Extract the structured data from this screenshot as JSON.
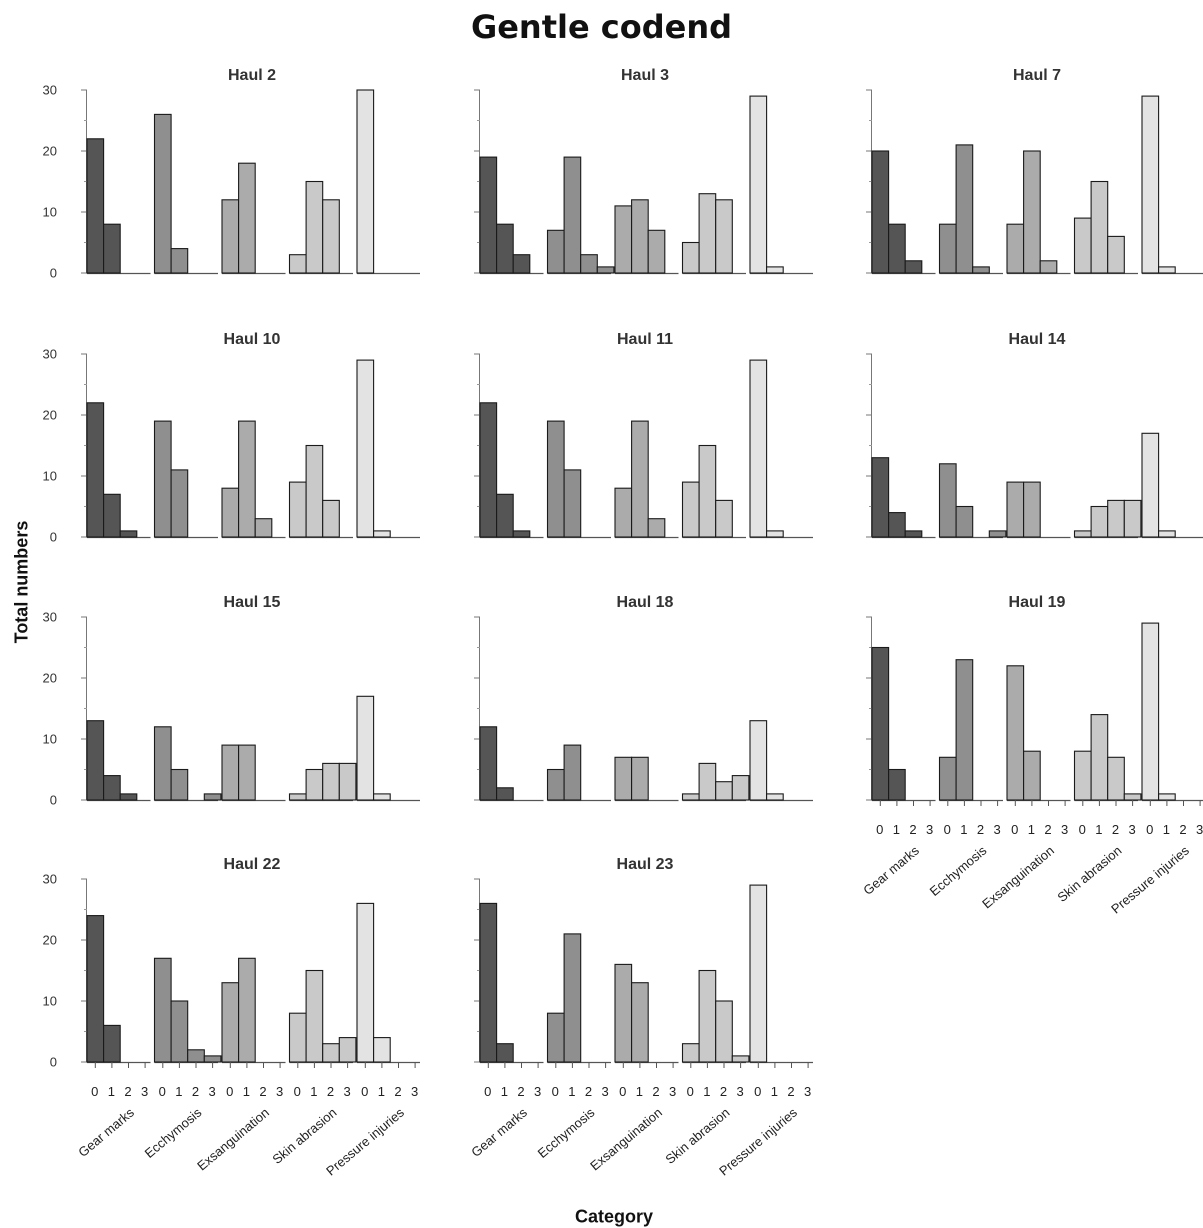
{
  "title": "Gentle codend",
  "ylabel": "Total numbers",
  "xlabel": "Category",
  "chart_data": {
    "type": "bar",
    "title": "Gentle codend",
    "xlabel": "Category",
    "ylabel": "Total numbers",
    "ylim": [
      0,
      30
    ],
    "yticks": [
      "0",
      "10",
      "20",
      "30"
    ],
    "groups": [
      "Gear marks",
      "Ecchymosis",
      "Exsanguination",
      "Skin abrasion",
      "Pressure injuries"
    ],
    "categories": [
      "0",
      "1",
      "2",
      "3"
    ],
    "group_colors": [
      "#555555",
      "#8f8f8f",
      "#ababab",
      "#c9c9c9",
      "#e3e3e3"
    ],
    "panels": [
      {
        "name": "Haul 2",
        "values": [
          [
            22,
            8,
            0,
            0
          ],
          [
            26,
            4,
            0,
            0
          ],
          [
            12,
            18,
            0,
            0
          ],
          [
            3,
            15,
            12,
            0
          ],
          [
            30,
            0,
            0,
            0
          ]
        ]
      },
      {
        "name": "Haul 3",
        "values": [
          [
            19,
            8,
            3,
            0
          ],
          [
            7,
            19,
            3,
            1
          ],
          [
            11,
            12,
            7,
            0
          ],
          [
            5,
            13,
            12,
            0
          ],
          [
            29,
            1,
            0,
            0
          ]
        ]
      },
      {
        "name": "Haul 7",
        "values": [
          [
            20,
            8,
            2,
            0
          ],
          [
            8,
            21,
            1,
            0
          ],
          [
            8,
            20,
            2,
            0
          ],
          [
            9,
            15,
            6,
            0
          ],
          [
            29,
            1,
            0,
            0
          ]
        ]
      },
      {
        "name": "Haul 10",
        "values": [
          [
            22,
            7,
            1,
            0
          ],
          [
            19,
            11,
            0,
            0
          ],
          [
            8,
            19,
            3,
            0
          ],
          [
            9,
            15,
            6,
            0
          ],
          [
            29,
            1,
            0,
            0
          ]
        ]
      },
      {
        "name": "Haul 11",
        "values": [
          [
            22,
            7,
            1,
            0
          ],
          [
            19,
            11,
            0,
            0
          ],
          [
            8,
            19,
            3,
            0
          ],
          [
            9,
            15,
            6,
            0
          ],
          [
            29,
            1,
            0,
            0
          ]
        ]
      },
      {
        "name": "Haul 14",
        "values": [
          [
            13,
            4,
            1,
            0
          ],
          [
            12,
            5,
            0,
            1
          ],
          [
            9,
            9,
            0,
            0
          ],
          [
            1,
            5,
            6,
            6
          ],
          [
            17,
            1,
            0,
            0
          ]
        ]
      },
      {
        "name": "Haul 15",
        "values": [
          [
            13,
            4,
            1,
            0
          ],
          [
            12,
            5,
            0,
            1
          ],
          [
            9,
            9,
            0,
            0
          ],
          [
            1,
            5,
            6,
            6
          ],
          [
            17,
            1,
            0,
            0
          ]
        ]
      },
      {
        "name": "Haul 18",
        "values": [
          [
            12,
            2,
            0,
            0
          ],
          [
            5,
            9,
            0,
            0
          ],
          [
            7,
            7,
            0,
            0
          ],
          [
            1,
            6,
            3,
            4
          ],
          [
            13,
            1,
            0,
            0
          ]
        ]
      },
      {
        "name": "Haul 19",
        "values": [
          [
            25,
            5,
            0,
            0
          ],
          [
            7,
            23,
            0,
            0
          ],
          [
            22,
            8,
            0,
            0
          ],
          [
            8,
            14,
            7,
            1
          ],
          [
            29,
            1,
            0,
            0
          ]
        ]
      },
      {
        "name": "Haul 22",
        "values": [
          [
            24,
            6,
            0,
            0
          ],
          [
            17,
            10,
            2,
            1
          ],
          [
            13,
            17,
            0,
            0
          ],
          [
            8,
            15,
            3,
            4
          ],
          [
            26,
            4,
            0,
            0
          ]
        ]
      },
      {
        "name": "Haul 23",
        "values": [
          [
            26,
            3,
            0,
            0
          ],
          [
            8,
            21,
            0,
            0
          ],
          [
            16,
            13,
            0,
            0
          ],
          [
            3,
            15,
            10,
            1
          ],
          [
            29,
            0,
            0,
            0
          ]
        ]
      }
    ]
  }
}
